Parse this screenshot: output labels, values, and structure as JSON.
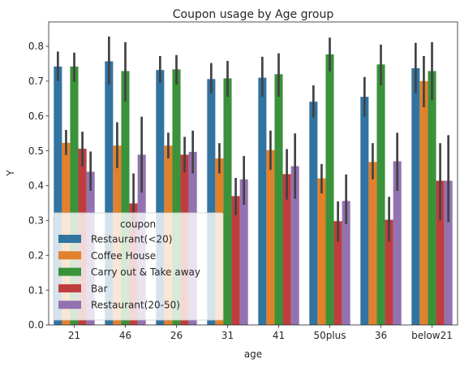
{
  "chart_data": {
    "type": "bar",
    "title": "Coupon usage by Age group",
    "xlabel": "age",
    "ylabel": "Y",
    "ylim": [
      0,
      0.87
    ],
    "yticks": [
      0.0,
      0.1,
      0.2,
      0.3,
      0.4,
      0.5,
      0.6,
      0.7,
      0.8
    ],
    "ytick_labels": [
      "0.0",
      "0.1",
      "0.2",
      "0.3",
      "0.4",
      "0.5",
      "0.6",
      "0.7",
      "0.8"
    ],
    "categories": [
      "21",
      "46",
      "26",
      "31",
      "41",
      "50plus",
      "36",
      "below21"
    ],
    "legend": {
      "title": "coupon",
      "placement": "lower-left"
    },
    "series": [
      {
        "name": "Restaurant(<20)",
        "color": "#3274a1",
        "values": [
          0.742,
          0.757,
          0.732,
          0.706,
          0.71,
          0.641,
          0.655,
          0.737
        ],
        "ci_low": [
          0.7,
          0.69,
          0.695,
          0.665,
          0.655,
          0.595,
          0.598,
          0.665
        ],
        "ci_high": [
          0.785,
          0.828,
          0.772,
          0.752,
          0.77,
          0.688,
          0.712,
          0.81
        ]
      },
      {
        "name": "Coffee House",
        "color": "#e1812c",
        "values": [
          0.523,
          0.515,
          0.515,
          0.478,
          0.502,
          0.421,
          0.468,
          0.7
        ],
        "ci_low": [
          0.488,
          0.45,
          0.478,
          0.435,
          0.445,
          0.378,
          0.418,
          0.625
        ],
        "ci_high": [
          0.56,
          0.582,
          0.552,
          0.522,
          0.558,
          0.462,
          0.522,
          0.772
        ]
      },
      {
        "name": "Carry out & Take away",
        "color": "#3a923a",
        "values": [
          0.742,
          0.729,
          0.734,
          0.708,
          0.72,
          0.777,
          0.748,
          0.729
        ],
        "ci_low": [
          0.698,
          0.642,
          0.69,
          0.655,
          0.655,
          0.728,
          0.688,
          0.645
        ],
        "ci_high": [
          0.782,
          0.812,
          0.775,
          0.758,
          0.78,
          0.825,
          0.805,
          0.812
        ]
      },
      {
        "name": "Bar",
        "color": "#c03d3e",
        "values": [
          0.506,
          0.349,
          0.489,
          0.37,
          0.433,
          0.298,
          0.302,
          0.414
        ],
        "ci_low": [
          0.455,
          0.265,
          0.438,
          0.315,
          0.36,
          0.24,
          0.24,
          0.3
        ],
        "ci_high": [
          0.555,
          0.435,
          0.54,
          0.422,
          0.505,
          0.355,
          0.368,
          0.522
        ]
      },
      {
        "name": "Restaurant(20-50)",
        "color": "#9372b2",
        "values": [
          0.44,
          0.489,
          0.497,
          0.418,
          0.456,
          0.356,
          0.47,
          0.414
        ],
        "ci_low": [
          0.385,
          0.38,
          0.435,
          0.345,
          0.362,
          0.29,
          0.385,
          0.295
        ],
        "ci_high": [
          0.498,
          0.598,
          0.558,
          0.485,
          0.55,
          0.432,
          0.552,
          0.545
        ]
      }
    ]
  }
}
